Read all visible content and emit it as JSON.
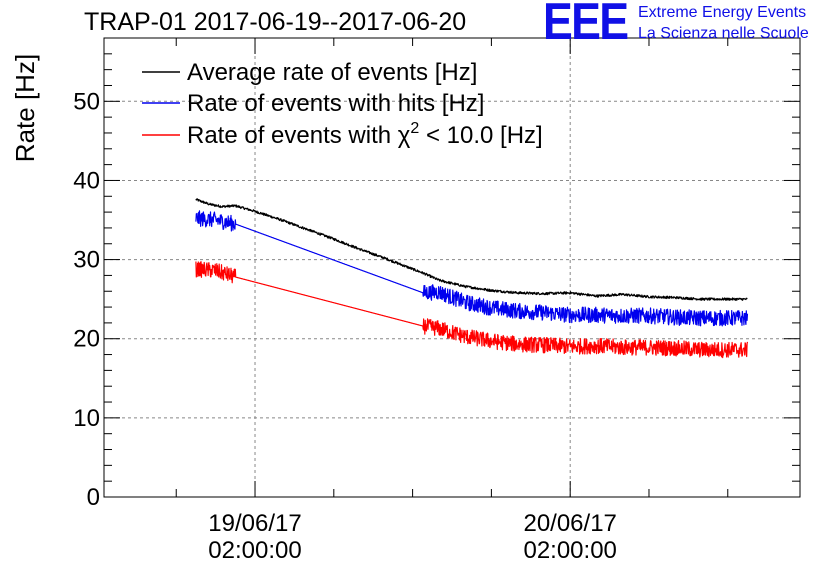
{
  "header": {
    "title": "TRAP-01 2017-06-19--2017-06-20",
    "logo_mark": "EEE",
    "logo_line1": "Extreme Energy Events",
    "logo_line2": "La Scienza nelle Scuole"
  },
  "colors": {
    "average": "#000000",
    "hits": "#0000ee",
    "chi2": "#ff0000",
    "logo": "#1010e6",
    "grid": "#888888"
  },
  "chart_data": {
    "type": "line",
    "ylabel": "Rate [Hz]",
    "ylim": [
      0,
      58
    ],
    "yticks": [
      0,
      10,
      20,
      30,
      40,
      50
    ],
    "xlim_hours": [
      -11.5,
      41.5
    ],
    "xticks": [
      {
        "hour": 0,
        "line1": "19/06/17",
        "line2": "02:00:00"
      },
      {
        "hour": 24,
        "line1": "20/06/17",
        "line2": "02:00:00"
      }
    ],
    "x_minor_step_hours": 6,
    "grid": true,
    "legend_position": "top-left",
    "legend": [
      {
        "label": "Average rate of events [Hz]",
        "series": "average"
      },
      {
        "label": "Rate of events with hits [Hz]",
        "series": "hits"
      },
      {
        "label_prefix": "Rate of events with ",
        "symbol": "χ",
        "superscript": "2",
        "label_suffix": " < 10.0 [Hz]",
        "series": "chi2"
      }
    ],
    "series": [
      {
        "name": "average",
        "noise": 0.15,
        "points": [
          [
            -4.5,
            37.6
          ],
          [
            -3.5,
            37.0
          ],
          [
            -2.5,
            36.7
          ],
          [
            -1.5,
            36.8
          ],
          [
            0.0,
            36.1
          ],
          [
            2.0,
            35.0
          ],
          [
            4.0,
            33.8
          ],
          [
            6.0,
            32.6
          ],
          [
            8.0,
            31.3
          ],
          [
            10.0,
            30.1
          ],
          [
            12.0,
            28.8
          ],
          [
            12.8,
            28.3
          ],
          [
            14.0,
            27.4
          ],
          [
            16.0,
            26.6
          ],
          [
            18.0,
            26.1
          ],
          [
            20.0,
            25.8
          ],
          [
            22.0,
            25.7
          ],
          [
            24.0,
            25.8
          ],
          [
            26.0,
            25.4
          ],
          [
            28.0,
            25.6
          ],
          [
            30.0,
            25.3
          ],
          [
            32.0,
            25.2
          ],
          [
            34.0,
            25.0
          ],
          [
            36.0,
            25.0
          ],
          [
            37.5,
            25.0
          ]
        ]
      },
      {
        "name": "hits",
        "noise": 1.0,
        "gap": [
          -1.5,
          12.8
        ],
        "points": [
          [
            -4.5,
            35.2
          ],
          [
            -3.0,
            35.0
          ],
          [
            -1.5,
            34.5
          ],
          [
            12.8,
            25.8
          ],
          [
            14.0,
            25.9
          ],
          [
            16.0,
            24.6
          ],
          [
            18.0,
            23.9
          ],
          [
            20.0,
            23.5
          ],
          [
            22.0,
            23.3
          ],
          [
            24.0,
            23.0
          ],
          [
            26.0,
            23.0
          ],
          [
            28.0,
            22.9
          ],
          [
            30.0,
            22.9
          ],
          [
            32.0,
            22.7
          ],
          [
            34.0,
            22.6
          ],
          [
            36.0,
            22.6
          ],
          [
            37.5,
            22.6
          ]
        ]
      },
      {
        "name": "chi2",
        "noise": 1.0,
        "gap": [
          -1.5,
          12.8
        ],
        "points": [
          [
            -4.5,
            28.8
          ],
          [
            -3.0,
            28.6
          ],
          [
            -1.5,
            27.8
          ],
          [
            12.8,
            21.6
          ],
          [
            14.0,
            21.3
          ],
          [
            16.0,
            20.3
          ],
          [
            18.0,
            19.7
          ],
          [
            20.0,
            19.3
          ],
          [
            22.0,
            19.2
          ],
          [
            24.0,
            19.0
          ],
          [
            26.0,
            19.1
          ],
          [
            28.0,
            18.9
          ],
          [
            30.0,
            18.9
          ],
          [
            32.0,
            18.8
          ],
          [
            34.0,
            18.6
          ],
          [
            36.0,
            18.6
          ],
          [
            37.5,
            18.6
          ]
        ]
      }
    ]
  }
}
